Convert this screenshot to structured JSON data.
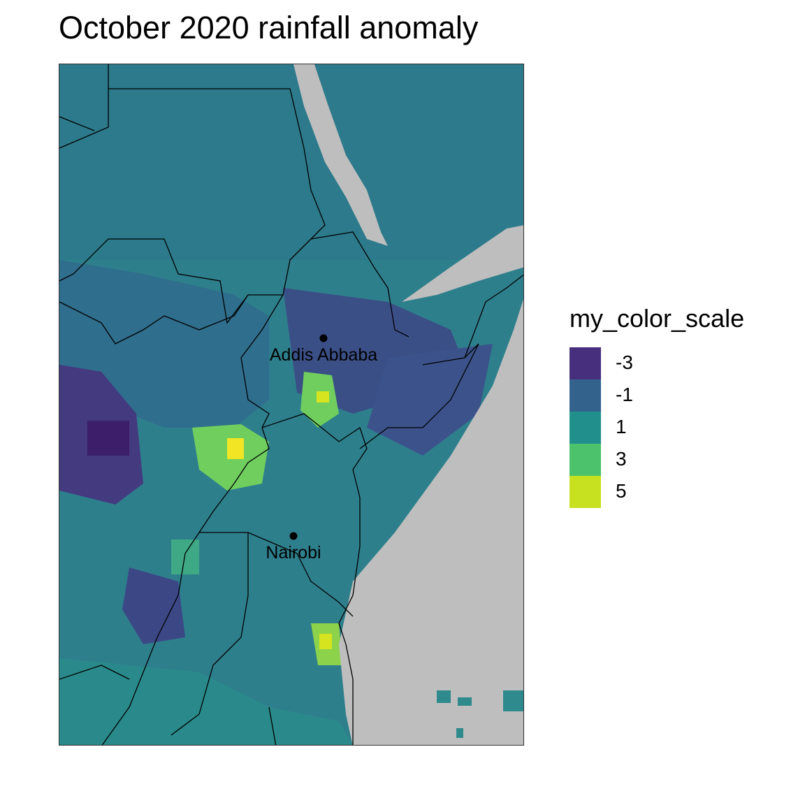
{
  "title": "October 2020 rainfall anomaly",
  "legend": {
    "title": "my_color_scale",
    "items": [
      {
        "label": "-3",
        "value": -3,
        "color": "#472f7d"
      },
      {
        "label": "-1",
        "value": -1,
        "color": "#33638d"
      },
      {
        "label": "1",
        "value": 1,
        "color": "#21908c"
      },
      {
        "label": "3",
        "value": 3,
        "color": "#4cc26c"
      },
      {
        "label": "5",
        "value": 5,
        "color": "#c7e020"
      }
    ]
  },
  "cities": [
    {
      "name": "Addis Abbaba"
    },
    {
      "name": "Nairobi"
    }
  ],
  "colors": {
    "no_data": "#bebebe",
    "background_anomaly": "#2d7d8c",
    "border": "#000000"
  }
}
